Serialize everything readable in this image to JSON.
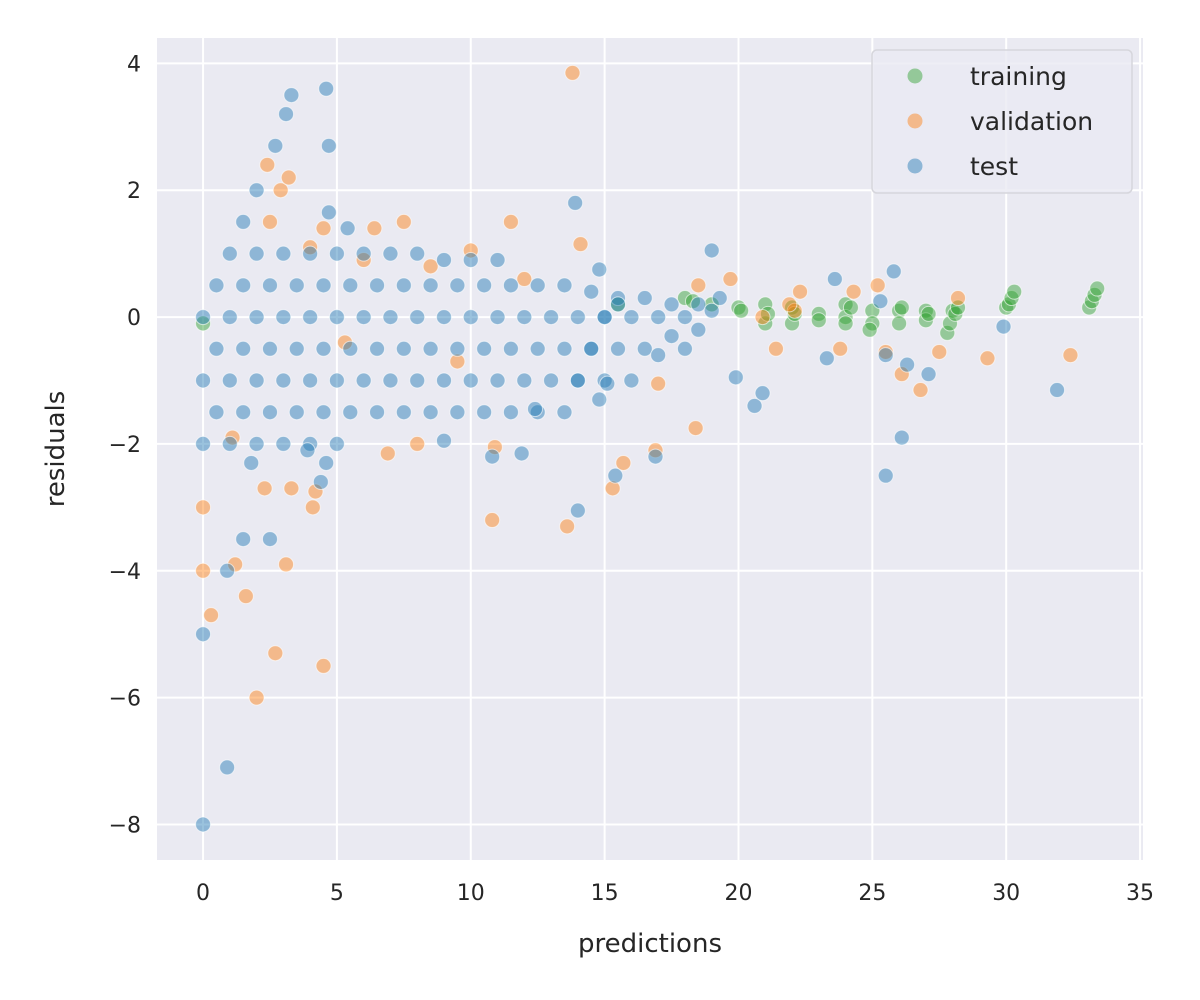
{
  "chart_data": {
    "type": "scatter",
    "title": "",
    "xlabel": "predictions",
    "ylabel": "residuals",
    "xlim": [
      -1.72,
      35.11
    ],
    "ylim": [
      -8.56,
      4.4
    ],
    "xticks": [
      0,
      5,
      10,
      15,
      20,
      25,
      30,
      35
    ],
    "yticks": [
      -8,
      -6,
      -4,
      -2,
      0,
      2,
      4
    ],
    "xtick_labels": [
      "0",
      "5",
      "10",
      "15",
      "20",
      "25",
      "30",
      "35"
    ],
    "ytick_labels": [
      "−8",
      "−6",
      "−4",
      "−2",
      "0",
      "2",
      "4"
    ],
    "grid": true,
    "background": "#eaeaf2",
    "legend_placement": "top-right",
    "series": [
      {
        "name": "training",
        "color": "#2ca02c",
        "points": [
          [
            0,
            -0.1
          ],
          [
            15.5,
            0.2
          ],
          [
            18,
            0.3
          ],
          [
            18.3,
            0.25
          ],
          [
            19,
            0.2
          ],
          [
            20,
            0.15
          ],
          [
            20.1,
            0.1
          ],
          [
            21,
            0.2
          ],
          [
            21,
            -0.1
          ],
          [
            21.1,
            0.05
          ],
          [
            22,
            0.15
          ],
          [
            22,
            -0.1
          ],
          [
            22.1,
            0.05
          ],
          [
            23,
            0.05
          ],
          [
            23,
            -0.05
          ],
          [
            24,
            0.2
          ],
          [
            24,
            0
          ],
          [
            24,
            -0.1
          ],
          [
            24.2,
            0.15
          ],
          [
            25,
            0.1
          ],
          [
            25,
            -0.1
          ],
          [
            24.9,
            -0.2
          ],
          [
            26,
            0.1
          ],
          [
            26,
            -0.1
          ],
          [
            26.1,
            0.15
          ],
          [
            27,
            0.1
          ],
          [
            27,
            -0.05
          ],
          [
            27.1,
            0.05
          ],
          [
            27.8,
            -0.25
          ],
          [
            27.9,
            -0.1
          ],
          [
            28,
            0.1
          ],
          [
            28.1,
            0.05
          ],
          [
            28.2,
            0.15
          ],
          [
            30,
            0.15
          ],
          [
            30.1,
            0.2
          ],
          [
            30.2,
            0.3
          ],
          [
            30.3,
            0.4
          ],
          [
            33.1,
            0.15
          ],
          [
            33.2,
            0.25
          ],
          [
            33.3,
            0.35
          ],
          [
            33.4,
            0.45
          ]
        ]
      },
      {
        "name": "validation",
        "color": "#ff7f0e",
        "points": [
          [
            13.8,
            3.85
          ],
          [
            14.1,
            1.15
          ],
          [
            11.5,
            1.5
          ],
          [
            7.5,
            1.5
          ],
          [
            6.4,
            1.4
          ],
          [
            2.5,
            1.5
          ],
          [
            2.9,
            2
          ],
          [
            3.2,
            2.2
          ],
          [
            2.4,
            2.4
          ],
          [
            10,
            1.05
          ],
          [
            4.5,
            1.4
          ],
          [
            4,
            1.1
          ],
          [
            8.5,
            0.8
          ],
          [
            6,
            0.9
          ],
          [
            12,
            0.6
          ],
          [
            5.3,
            -0.4
          ],
          [
            9.5,
            -0.7
          ],
          [
            0,
            -3
          ],
          [
            0,
            -4
          ],
          [
            0.3,
            -4.7
          ],
          [
            1.6,
            -4.4
          ],
          [
            2.7,
            -5.3
          ],
          [
            4.5,
            -5.5
          ],
          [
            2,
            -6
          ],
          [
            3.1,
            -3.9
          ],
          [
            1.2,
            -3.9
          ],
          [
            4.1,
            -3
          ],
          [
            10.8,
            -3.2
          ],
          [
            13.6,
            -3.3
          ],
          [
            15.3,
            -2.7
          ],
          [
            15.7,
            -2.3
          ],
          [
            16.9,
            -2.1
          ],
          [
            18.4,
            -1.75
          ],
          [
            10.9,
            -2.05
          ],
          [
            6.9,
            -2.15
          ],
          [
            8,
            -2
          ],
          [
            1.1,
            -1.9
          ],
          [
            2.3,
            -2.7
          ],
          [
            3.3,
            -2.7
          ],
          [
            4.2,
            -2.75
          ],
          [
            17,
            -1.05
          ],
          [
            19.7,
            0.6
          ],
          [
            18.5,
            0.5
          ],
          [
            22.3,
            0.4
          ],
          [
            24.3,
            0.4
          ],
          [
            25.2,
            0.5
          ],
          [
            23.8,
            -0.5
          ],
          [
            27.5,
            -0.55
          ],
          [
            26.8,
            -1.15
          ],
          [
            29.3,
            -0.65
          ],
          [
            32.4,
            -0.6
          ],
          [
            26.1,
            -0.9
          ],
          [
            25.5,
            -0.55
          ],
          [
            21.4,
            -0.5
          ],
          [
            28.2,
            0.3
          ],
          [
            20.9,
            0
          ],
          [
            22.1,
            0.1
          ],
          [
            21.9,
            0.2
          ]
        ]
      },
      {
        "name": "test",
        "color": "#1f77b4",
        "points": [
          [
            0,
            0
          ],
          [
            0.5,
            0.5
          ],
          [
            1,
            1
          ],
          [
            1.5,
            1.5
          ],
          [
            2,
            2
          ],
          [
            0,
            -1
          ],
          [
            0.5,
            -0.5
          ],
          [
            1,
            0
          ],
          [
            1.5,
            0.5
          ],
          [
            2,
            1
          ],
          [
            0,
            -2
          ],
          [
            0.5,
            -1.5
          ],
          [
            1,
            -1
          ],
          [
            1.5,
            -0.5
          ],
          [
            2,
            0
          ],
          [
            2.5,
            0.5
          ],
          [
            3,
            1
          ],
          [
            1,
            -2
          ],
          [
            1.5,
            -1.5
          ],
          [
            2,
            -1
          ],
          [
            2.5,
            -0.5
          ],
          [
            3,
            0
          ],
          [
            3.5,
            0.5
          ],
          [
            4,
            1
          ],
          [
            2,
            -2
          ],
          [
            2.5,
            -1.5
          ],
          [
            3,
            -1
          ],
          [
            3.5,
            -0.5
          ],
          [
            4,
            0
          ],
          [
            4.5,
            0.5
          ],
          [
            5,
            1
          ],
          [
            3,
            -2
          ],
          [
            3.5,
            -1.5
          ],
          [
            4,
            -1
          ],
          [
            4.5,
            -0.5
          ],
          [
            5,
            0
          ],
          [
            5.5,
            0.5
          ],
          [
            6,
            1
          ],
          [
            4,
            -2
          ],
          [
            4.5,
            -1.5
          ],
          [
            5,
            -1
          ],
          [
            5.5,
            -0.5
          ],
          [
            6,
            0
          ],
          [
            6.5,
            0.5
          ],
          [
            7,
            1
          ],
          [
            5,
            -2
          ],
          [
            5.5,
            -1.5
          ],
          [
            6,
            -1
          ],
          [
            6.5,
            -0.5
          ],
          [
            7,
            0
          ],
          [
            7.5,
            0.5
          ],
          [
            8,
            1
          ],
          [
            6.5,
            -1.5
          ],
          [
            7,
            -1
          ],
          [
            7.5,
            -0.5
          ],
          [
            8,
            0
          ],
          [
            8.5,
            0.5
          ],
          [
            9,
            0.9
          ],
          [
            7.5,
            -1.5
          ],
          [
            8,
            -1
          ],
          [
            8.5,
            -0.5
          ],
          [
            9,
            0
          ],
          [
            9.5,
            0.5
          ],
          [
            10,
            0.9
          ],
          [
            8.5,
            -1.5
          ],
          [
            9,
            -1
          ],
          [
            9.5,
            -0.5
          ],
          [
            10,
            0
          ],
          [
            10.5,
            0.5
          ],
          [
            11,
            0.9
          ],
          [
            9.5,
            -1.5
          ],
          [
            10,
            -1
          ],
          [
            10.5,
            -0.5
          ],
          [
            11,
            0
          ],
          [
            11.5,
            0.5
          ],
          [
            10.5,
            -1.5
          ],
          [
            11,
            -1
          ],
          [
            11.5,
            -0.5
          ],
          [
            12,
            0
          ],
          [
            12.5,
            0.5
          ],
          [
            11.5,
            -1.5
          ],
          [
            12,
            -1
          ],
          [
            12.5,
            -0.5
          ],
          [
            13,
            0
          ],
          [
            13.5,
            0.5
          ],
          [
            12.5,
            -1.5
          ],
          [
            13,
            -1
          ],
          [
            13.5,
            -0.5
          ],
          [
            14,
            0
          ],
          [
            14.5,
            0.4
          ],
          [
            13.5,
            -1.5
          ],
          [
            14,
            -1
          ],
          [
            14.5,
            -0.5
          ],
          [
            15,
            0
          ],
          [
            15.5,
            0.3
          ],
          [
            14,
            -1
          ],
          [
            14.5,
            -0.5
          ],
          [
            15,
            0
          ],
          [
            15.5,
            0.2
          ],
          [
            15,
            -1
          ],
          [
            15.5,
            -0.5
          ],
          [
            16,
            0
          ],
          [
            16.5,
            0.3
          ],
          [
            16,
            -1
          ],
          [
            16.5,
            -0.5
          ],
          [
            17,
            0
          ],
          [
            17.5,
            0.2
          ],
          [
            17,
            -0.6
          ],
          [
            17.5,
            -0.3
          ],
          [
            18,
            0
          ],
          [
            18.5,
            0.2
          ],
          [
            18,
            -0.5
          ],
          [
            18.5,
            -0.2
          ],
          [
            19,
            0.1
          ],
          [
            19.3,
            0.3
          ],
          [
            3.3,
            3.5
          ],
          [
            4.6,
            3.6
          ],
          [
            3.1,
            3.2
          ],
          [
            4.7,
            2.7
          ],
          [
            2.7,
            2.7
          ],
          [
            13.9,
            1.8
          ],
          [
            19,
            1.05
          ],
          [
            14.8,
            0.75
          ],
          [
            0,
            -5
          ],
          [
            0.9,
            -7.1
          ],
          [
            0,
            -8
          ],
          [
            2.5,
            -3.5
          ],
          [
            1.5,
            -3.5
          ],
          [
            0.9,
            -4
          ],
          [
            4.6,
            -2.3
          ],
          [
            4.4,
            -2.6
          ],
          [
            14,
            -3.05
          ],
          [
            10.8,
            -2.2
          ],
          [
            11.9,
            -2.15
          ],
          [
            15.4,
            -2.5
          ],
          [
            16.9,
            -2.2
          ],
          [
            23.3,
            -0.65
          ],
          [
            25.5,
            -2.5
          ],
          [
            26.1,
            -1.9
          ],
          [
            25.5,
            -0.6
          ],
          [
            26.3,
            -0.75
          ],
          [
            27.1,
            -0.9
          ],
          [
            29.9,
            -0.15
          ],
          [
            31.9,
            -1.15
          ],
          [
            23.6,
            0.6
          ],
          [
            25.8,
            0.72
          ],
          [
            25.3,
            0.25
          ],
          [
            20.6,
            -1.4
          ],
          [
            20.9,
            -1.2
          ],
          [
            19.9,
            -0.95
          ],
          [
            4.7,
            1.65
          ],
          [
            5.4,
            1.4
          ],
          [
            1.8,
            -2.3
          ],
          [
            3.9,
            -2.1
          ],
          [
            9,
            -1.95
          ],
          [
            12.4,
            -1.45
          ],
          [
            14.8,
            -1.3
          ],
          [
            15.1,
            -1.05
          ]
        ]
      }
    ]
  }
}
